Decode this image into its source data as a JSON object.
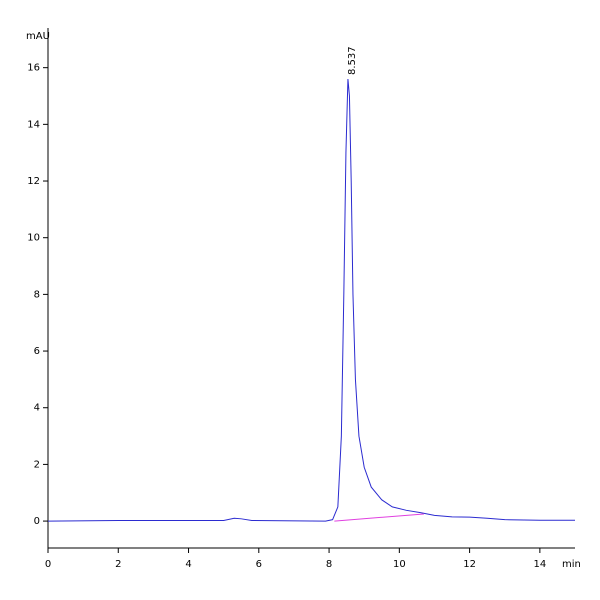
{
  "chart_data": {
    "type": "line",
    "x_label": "min",
    "y_label": "mAU",
    "xlim": [
      0,
      15.0
    ],
    "ylim": [
      -0.95,
      17.4
    ],
    "xticks": [
      0,
      2,
      4,
      6,
      8,
      10,
      12,
      14
    ],
    "yticks": [
      0,
      2,
      4,
      6,
      8,
      10,
      12,
      14,
      16
    ],
    "series": [
      {
        "color": "#2b2bd0",
        "x": [
          0,
          2,
          5.0,
          5.3,
          5.5,
          5.8,
          7.9,
          8.1,
          8.25,
          8.35,
          8.42,
          8.48,
          8.537,
          8.58,
          8.63,
          8.68,
          8.75,
          8.85,
          9.0,
          9.2,
          9.5,
          9.8,
          10.2,
          10.6,
          10.8,
          11.0,
          11.5,
          12.0,
          12.5,
          13.0,
          14.0,
          15.0
        ],
        "values": [
          0,
          0.02,
          0.02,
          0.1,
          0.08,
          0.02,
          0,
          0.05,
          0.5,
          3,
          8,
          13,
          15.6,
          15.0,
          12,
          8,
          5,
          3,
          1.9,
          1.2,
          0.75,
          0.5,
          0.38,
          0.3,
          0.25,
          0.2,
          0.15,
          0.14,
          0.1,
          0.05,
          0.03,
          0.03
        ]
      },
      {
        "color": "#e040e0",
        "x": [
          8.15,
          10.7
        ],
        "values": [
          0.0,
          0.25
        ]
      }
    ],
    "annotations": [
      {
        "text": "8.537",
        "x": 8.537
      }
    ]
  }
}
